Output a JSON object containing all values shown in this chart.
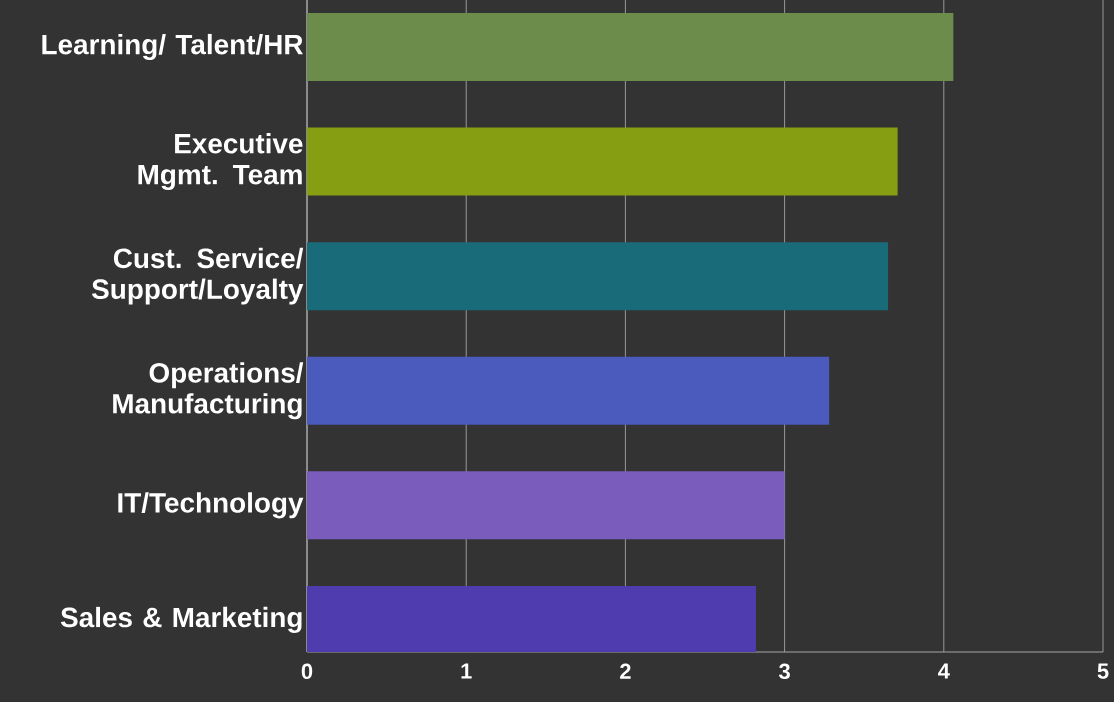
{
  "chart_data": {
    "type": "bar",
    "orientation": "horizontal",
    "categories": [
      "Learning/ Talent/HR",
      "Executive Mgmt. Team",
      "Cust. Service/ Support/Loyalty",
      "Operations/ Manufacturing",
      "IT/Technology",
      "Sales & Marketing"
    ],
    "values": [
      4.06,
      3.71,
      3.65,
      3.28,
      3.0,
      2.82
    ],
    "colors": [
      "#6b8c4a",
      "#869e12",
      "#1a6b7a",
      "#4a5bbd",
      "#7a5cbd",
      "#4f3db0"
    ],
    "xlim": [
      0,
      5
    ],
    "xticks": [
      0,
      1,
      2,
      3,
      4,
      5
    ],
    "grid": "x"
  }
}
